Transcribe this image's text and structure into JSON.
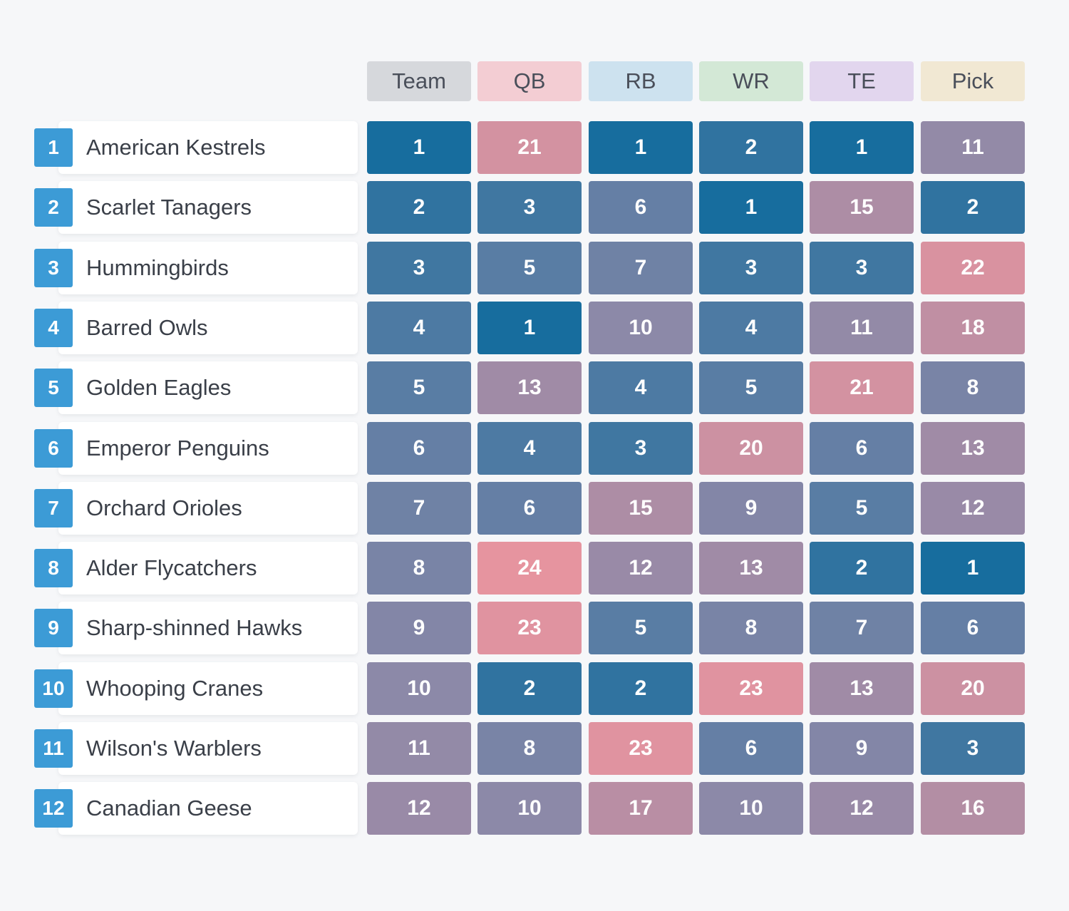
{
  "chart_data": {
    "type": "table",
    "columns": [
      "Team",
      "QB",
      "RB",
      "WR",
      "TE",
      "Pick"
    ],
    "header_colors": [
      "#d6d8dc",
      "#f3cdd3",
      "#cde2ef",
      "#d3e8d6",
      "#e2d6ee",
      "#f1e8d3"
    ],
    "rows": [
      {
        "rank": "1",
        "team": "American Kestrels",
        "values": [
          1,
          21,
          1,
          2,
          1,
          11
        ]
      },
      {
        "rank": "2",
        "team": "Scarlet Tanagers",
        "values": [
          2,
          3,
          6,
          1,
          15,
          2
        ]
      },
      {
        "rank": "3",
        "team": "Hummingbirds",
        "values": [
          3,
          5,
          7,
          3,
          3,
          22
        ]
      },
      {
        "rank": "4",
        "team": "Barred Owls",
        "values": [
          4,
          1,
          10,
          4,
          11,
          18
        ]
      },
      {
        "rank": "5",
        "team": "Golden Eagles",
        "values": [
          5,
          13,
          4,
          5,
          21,
          8
        ]
      },
      {
        "rank": "6",
        "team": "Emperor Penguins",
        "values": [
          6,
          4,
          3,
          20,
          6,
          13
        ]
      },
      {
        "rank": "7",
        "team": "Orchard Orioles",
        "values": [
          7,
          6,
          15,
          9,
          5,
          12
        ]
      },
      {
        "rank": "8",
        "team": "Alder Flycatchers",
        "values": [
          8,
          24,
          12,
          13,
          2,
          1
        ]
      },
      {
        "rank": "9",
        "team": "Sharp-shinned Hawks",
        "values": [
          9,
          23,
          5,
          8,
          7,
          6
        ]
      },
      {
        "rank": "10",
        "team": "Whooping Cranes",
        "values": [
          10,
          2,
          2,
          23,
          13,
          20
        ]
      },
      {
        "rank": "11",
        "team": "Wilson's Warblers",
        "values": [
          11,
          8,
          23,
          6,
          9,
          3
        ]
      },
      {
        "rank": "12",
        "team": "Canadian Geese",
        "values": [
          12,
          10,
          17,
          10,
          12,
          16
        ]
      }
    ],
    "color_scale": {
      "low": "#176d9e",
      "mid": "#8e89a8",
      "high": "#e6949f",
      "domain": [
        1,
        24
      ]
    },
    "rank_badge_color": "#3c9bd6"
  }
}
